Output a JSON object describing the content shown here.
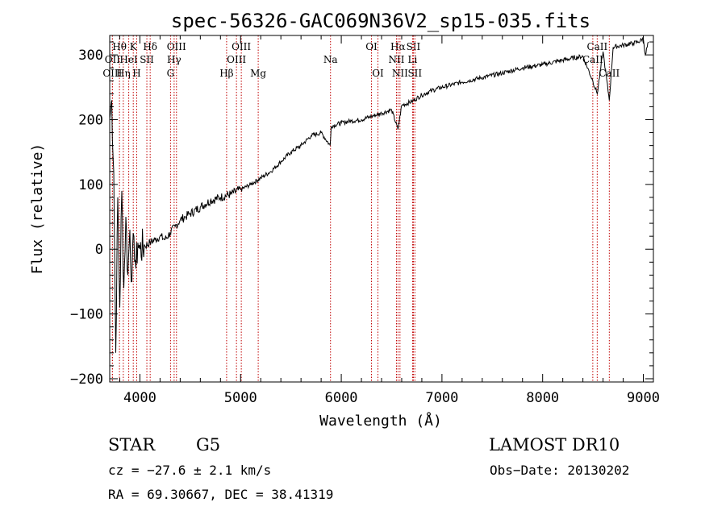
{
  "chart_data": {
    "type": "line",
    "title": "spec-56326-GAC069N36V2_sp15-035.fits",
    "xlabel": "Wavelength (Å)",
    "ylabel": "Flux (relative)",
    "xlim": [
      3700,
      9100
    ],
    "ylim": [
      -205,
      330
    ],
    "xticks": [
      4000,
      5000,
      6000,
      7000,
      8000,
      9000
    ],
    "yticks": [
      -200,
      -100,
      0,
      100,
      200,
      300
    ],
    "series": [
      {
        "x": [
          3700,
          3720,
          3740,
          3760,
          3780,
          3800,
          3820,
          3840,
          3860,
          3880,
          3900,
          3920,
          3940,
          3960,
          3980,
          4000,
          4050,
          4100,
          4150,
          4200,
          4250,
          4300,
          4350,
          4400,
          4450,
          4500,
          4600,
          4700,
          4800,
          4900,
          5000,
          5100,
          5200,
          5300,
          5400,
          5500,
          5600,
          5700,
          5800,
          5890,
          5900,
          6000,
          6100,
          6200,
          6300,
          6400,
          6500,
          6563,
          6600,
          6700,
          6800,
          6900,
          7000,
          7200,
          7400,
          7600,
          7800,
          8000,
          8200,
          8400,
          8498,
          8542,
          8600,
          8662,
          8700,
          8800,
          8900,
          8950,
          9000,
          9020,
          9050
        ],
        "y": [
          200,
          230,
          120,
          -160,
          80,
          -90,
          90,
          -60,
          50,
          -40,
          30,
          -50,
          20,
          -30,
          10,
          0,
          5,
          10,
          15,
          20,
          15,
          25,
          35,
          45,
          50,
          55,
          65,
          75,
          80,
          85,
          92,
          100,
          110,
          120,
          135,
          150,
          160,
          175,
          180,
          160,
          190,
          195,
          198,
          200,
          205,
          210,
          215,
          185,
          222,
          228,
          238,
          245,
          250,
          258,
          265,
          272,
          280,
          285,
          292,
          298,
          260,
          240,
          305,
          230,
          312,
          315,
          318,
          320,
          325,
          300,
          320
        ]
      }
    ],
    "spectral_lines": [
      {
        "label": "Hθ",
        "x": 3797,
        "row": 1
      },
      {
        "label": "OII",
        "x": 3727,
        "row": 2
      },
      {
        "label": "OIII",
        "x": 3727,
        "row": 3
      },
      {
        "label": "K",
        "x": 3934,
        "row": 1
      },
      {
        "label": "HeI",
        "x": 3889,
        "row": 2
      },
      {
        "label": "Hη",
        "x": 3835,
        "row": 3
      },
      {
        "label": "SII",
        "x": 4069,
        "row": 2
      },
      {
        "label": "H",
        "x": 3968,
        "row": 3
      },
      {
        "label": "Hδ",
        "x": 4102,
        "row": 1
      },
      {
        "label": "OIII",
        "x": 4363,
        "row": 1
      },
      {
        "label": "Hγ",
        "x": 4340,
        "row": 2
      },
      {
        "label": "G",
        "x": 4304,
        "row": 3
      },
      {
        "label": "OIII",
        "x": 5007,
        "row": 1
      },
      {
        "label": "OIII",
        "x": 4959,
        "row": 2
      },
      {
        "label": "Hβ",
        "x": 4861,
        "row": 3
      },
      {
        "label": "Mg",
        "x": 5175,
        "row": 3
      },
      {
        "label": "Na",
        "x": 5893,
        "row": 2
      },
      {
        "label": "OI",
        "x": 6300,
        "row": 1
      },
      {
        "label": "OI",
        "x": 6364,
        "row": 3
      },
      {
        "label": "Hα",
        "x": 6563,
        "row": 1
      },
      {
        "label": "SII",
        "x": 6716,
        "row": 1
      },
      {
        "label": "NII",
        "x": 6548,
        "row": 2
      },
      {
        "label": "Li",
        "x": 6708,
        "row": 2
      },
      {
        "label": "NII",
        "x": 6583,
        "row": 3
      },
      {
        "label": "SII",
        "x": 6731,
        "row": 3
      },
      {
        "label": "CaII",
        "x": 8542,
        "row": 1
      },
      {
        "label": "CaII",
        "x": 8498,
        "row": 2
      },
      {
        "label": "CaII",
        "x": 8662,
        "row": 3
      }
    ],
    "grid": false,
    "legend": "none"
  },
  "info": {
    "class": "STAR",
    "subclass": "G5",
    "survey": "LAMOST DR10",
    "cz": "cz = −27.6 ± 2.1 km/s",
    "obs_date": "Obs−Date: 20130202",
    "coords": "RA =  69.30667, DEC =  38.41319"
  }
}
